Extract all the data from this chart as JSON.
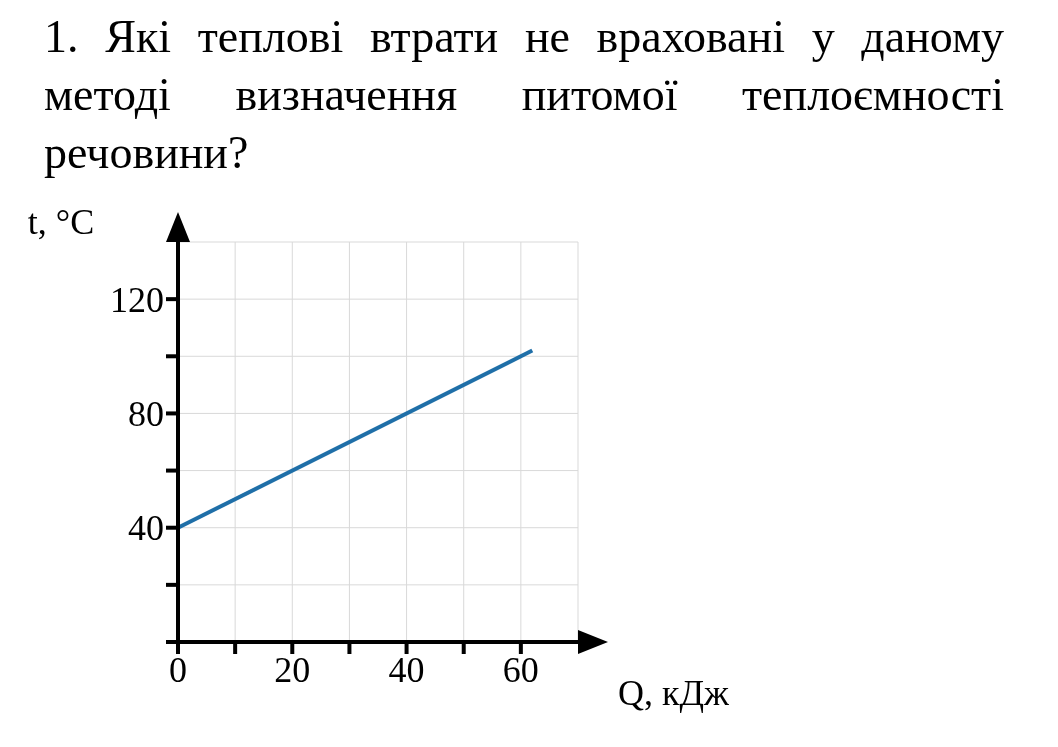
{
  "chart_data": {
    "type": "line",
    "title": "1. Які теплові втрати не враховані у даному методі визначення питомої теплоємності речовини?",
    "xlabel": "Q, кДж",
    "ylabel": "t, °C",
    "x": [
      0,
      62
    ],
    "series": [
      {
        "color": "#1f6fa8",
        "values": [
          40,
          102
        ]
      }
    ],
    "xlim": [
      0,
      70
    ],
    "ylim": [
      0,
      140
    ],
    "xticks": [
      0,
      {
        "value": 10,
        "label": null
      },
      20,
      {
        "value": 30,
        "label": null
      },
      40,
      {
        "value": 50,
        "label": null
      },
      60
    ],
    "yticks": [
      {
        "value": 0,
        "label": null
      },
      {
        "value": 20,
        "label": null
      },
      40,
      {
        "value": 60,
        "label": null
      },
      80,
      {
        "value": 100,
        "label": null
      },
      120
    ],
    "grid": true,
    "marker": "none",
    "line_style": "solid"
  }
}
